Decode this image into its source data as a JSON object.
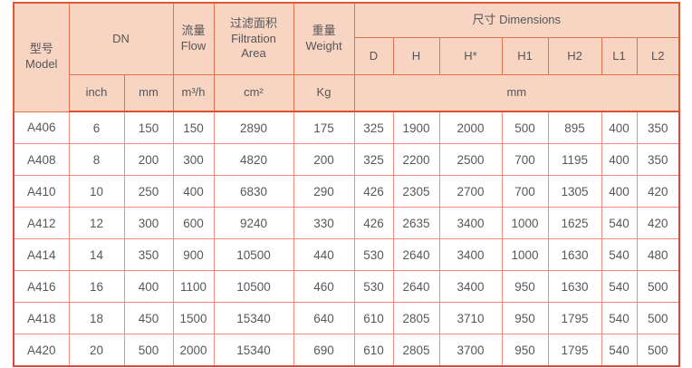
{
  "table": {
    "title_semantic": "filter-model-specification-table",
    "header": {
      "model": "型号\nModel",
      "dn": "DN",
      "flow": "流量\nFlow",
      "filtration": "过滤面积\nFiltration\nArea",
      "weight": "重量\nWeight",
      "dimensions": "尺寸 Dimensions",
      "dim_cols": [
        "D",
        "H",
        "H*",
        "H1",
        "H2",
        "L1",
        "L2"
      ],
      "units": {
        "inch": "inch",
        "mm": "mm",
        "flow": "m³/h",
        "area": "cm²",
        "weight": "Kg",
        "dims": "mm"
      }
    },
    "rows": [
      {
        "cells": [
          "A406",
          "6",
          "150",
          "150",
          "2890",
          "175",
          "325",
          "1900",
          "2000",
          "500",
          "895",
          "400",
          "350"
        ]
      },
      {
        "cells": [
          "A408",
          "8",
          "200",
          "300",
          "4820",
          "200",
          "325",
          "2200",
          "2500",
          "700",
          "1195",
          "400",
          "350"
        ]
      },
      {
        "cells": [
          "A410",
          "10",
          "250",
          "400",
          "6830",
          "290",
          "426",
          "2305",
          "2700",
          "700",
          "1305",
          "400",
          "420"
        ]
      },
      {
        "cells": [
          "A412",
          "12",
          "300",
          "600",
          "9240",
          "330",
          "426",
          "2635",
          "3400",
          "1000",
          "1625",
          "540",
          "420"
        ]
      },
      {
        "cells": [
          "A414",
          "14",
          "350",
          "900",
          "10500",
          "440",
          "530",
          "2640",
          "3400",
          "1000",
          "1630",
          "540",
          "480"
        ]
      },
      {
        "cells": [
          "A416",
          "16",
          "400",
          "1100",
          "10500",
          "460",
          "530",
          "2640",
          "3400",
          "950",
          "1630",
          "540",
          "500"
        ]
      },
      {
        "cells": [
          "A418",
          "18",
          "450",
          "1500",
          "15340",
          "640",
          "610",
          "2805",
          "3710",
          "950",
          "1795",
          "540",
          "500"
        ]
      },
      {
        "cells": [
          "A420",
          "20",
          "500",
          "2000",
          "15340",
          "690",
          "610",
          "2805",
          "3700",
          "950",
          "1795",
          "540",
          "500"
        ]
      }
    ]
  },
  "colors": {
    "header_bg": "#f7d5c2",
    "header_border": "#e0714c",
    "header_outer_border": "#dc5a36",
    "body_border": "#ee8c80",
    "body_outer_border": "#e2453a",
    "text": "#58585a",
    "body_bg": "#ffffff"
  }
}
